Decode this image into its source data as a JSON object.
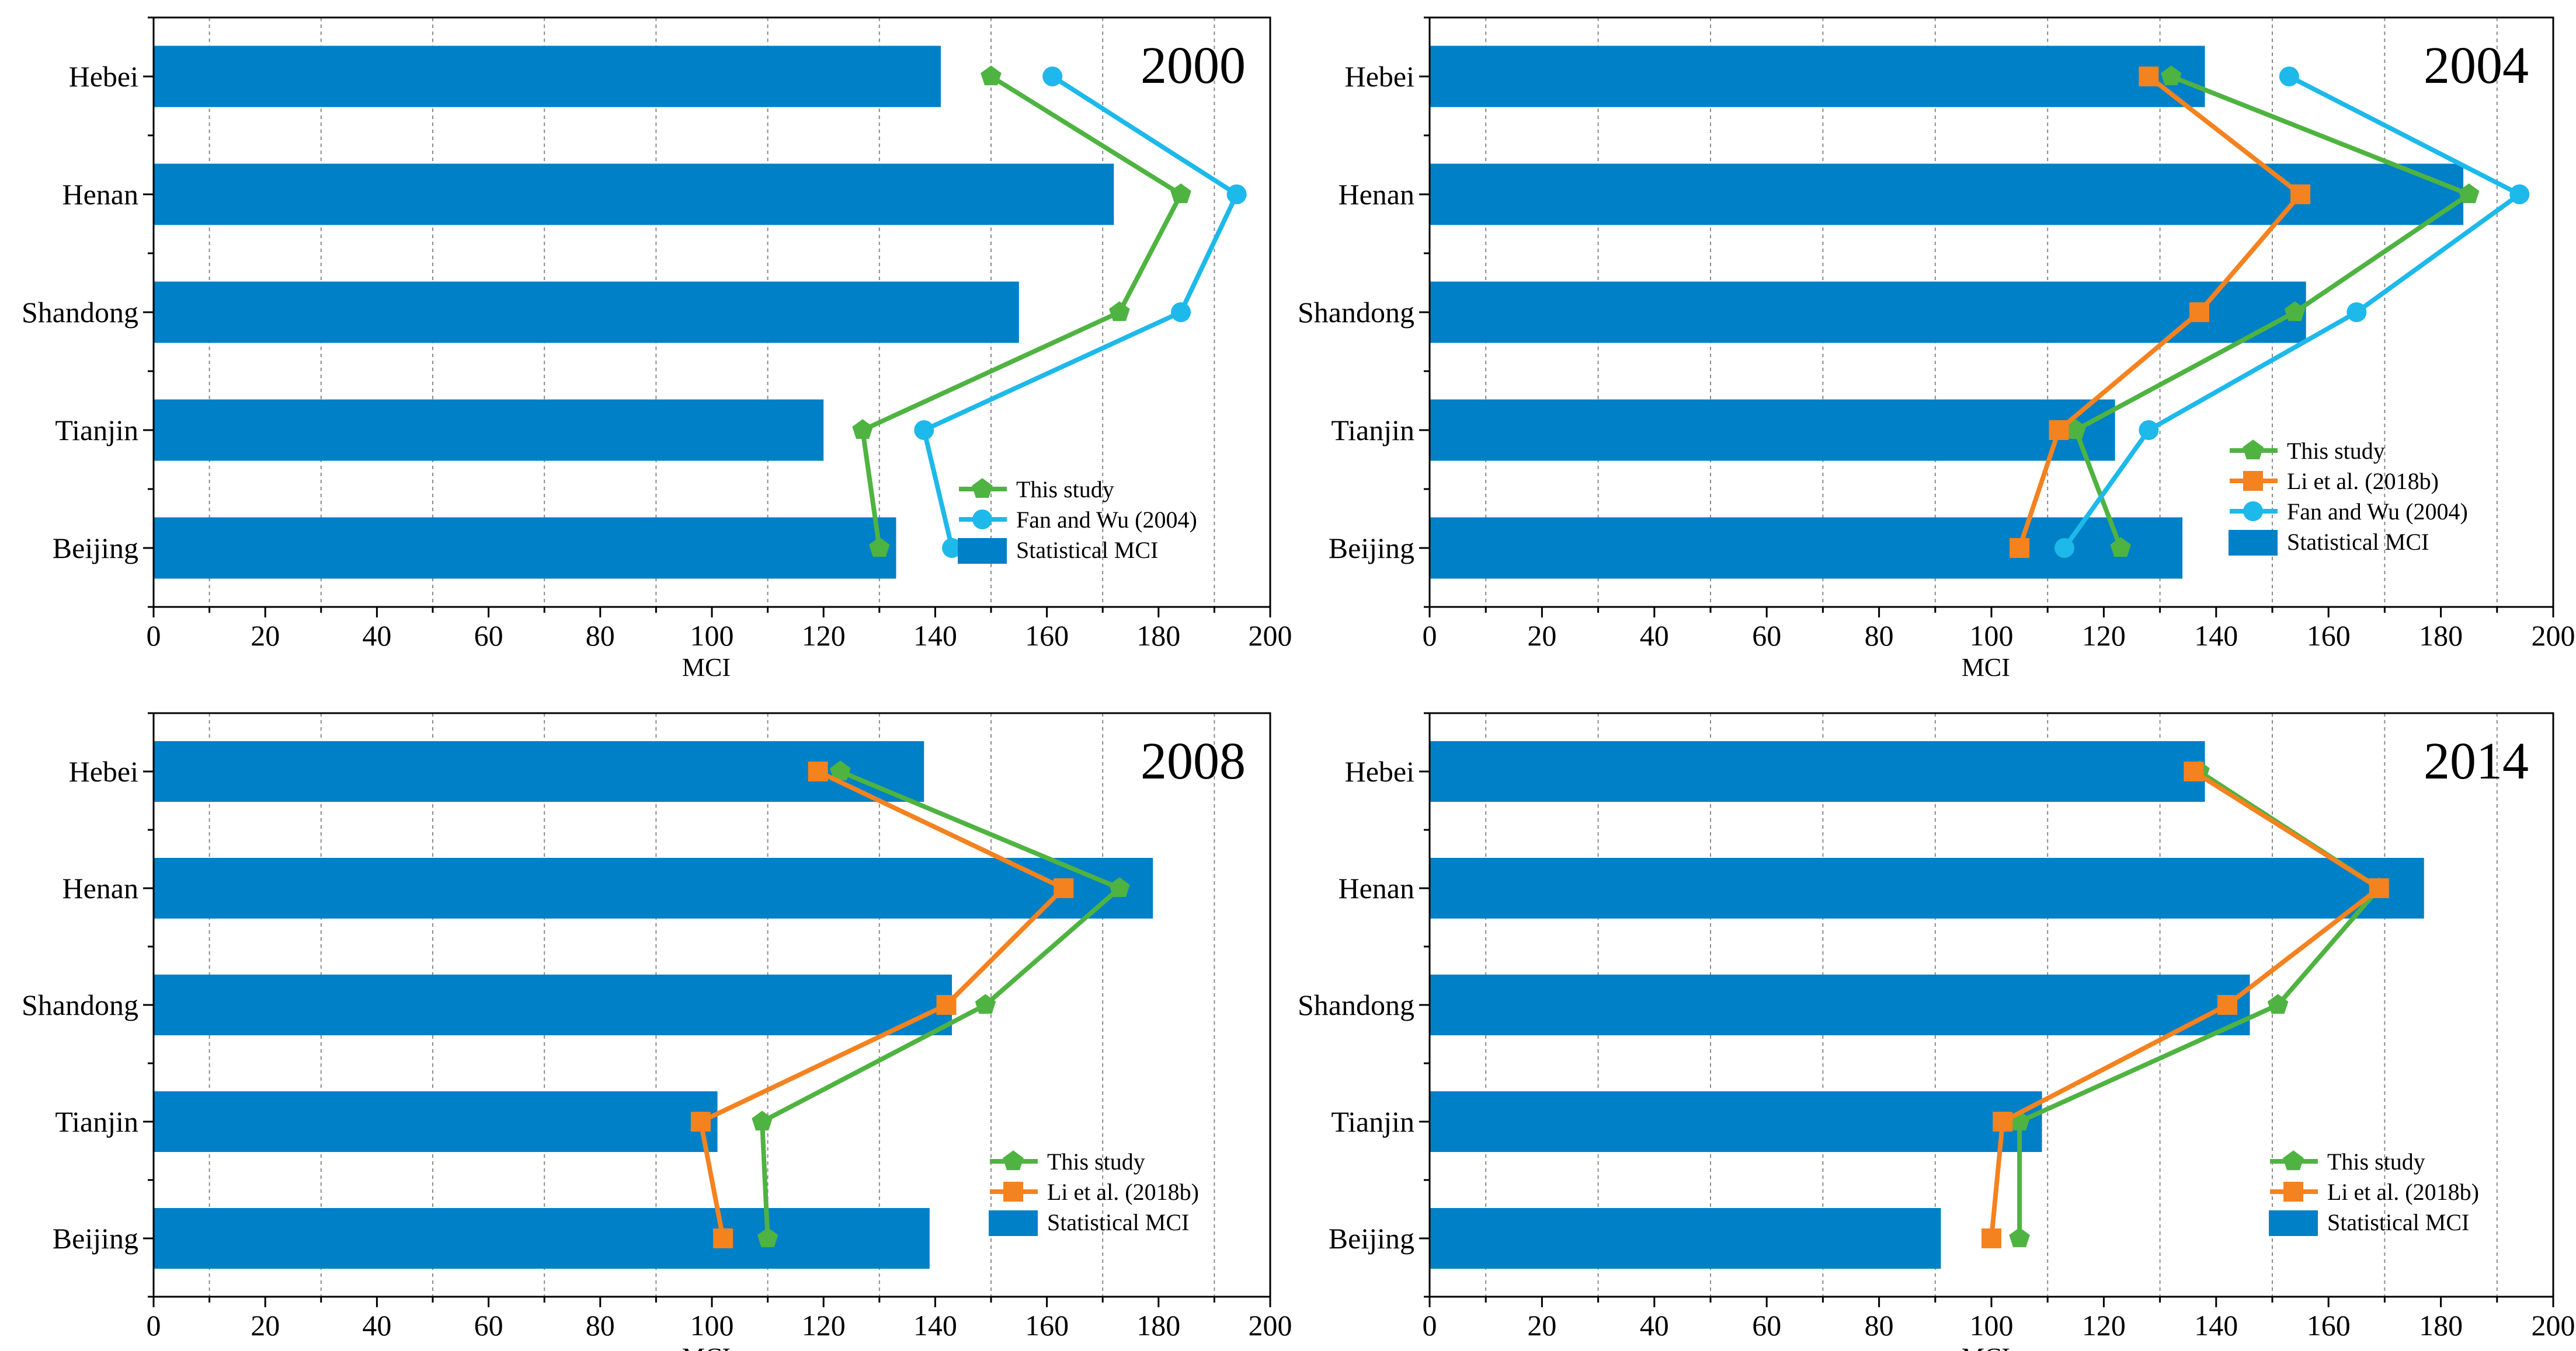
{
  "chart_data": [
    {
      "type": "bar",
      "title": "2000",
      "orientation": "horizontal",
      "categories": [
        "Hebei",
        "Henan",
        "Shandong",
        "Tianjin",
        "Beijing"
      ],
      "xlabel": "MCI",
      "xlim": [
        0,
        200
      ],
      "xticks": [
        "0",
        "20",
        "40",
        "60",
        "80",
        "100",
        "120",
        "140",
        "160",
        "180",
        "200"
      ],
      "gridlines": "dashed vertical",
      "legend_position": "bottom-right",
      "bars": {
        "name": "Statistical MCI",
        "color": "#0080c6",
        "values": [
          141,
          172,
          155,
          120,
          133
        ]
      },
      "series": [
        {
          "name": "This study",
          "color": "#4fb341",
          "marker": "pentagon",
          "values": [
            150,
            184,
            173,
            127,
            130
          ]
        },
        {
          "name": "Fan and Wu (2004)",
          "color": "#1db9ea",
          "marker": "circle",
          "values": [
            161,
            194,
            184,
            138,
            143
          ]
        }
      ]
    },
    {
      "type": "bar",
      "title": "2004",
      "orientation": "horizontal",
      "categories": [
        "Hebei",
        "Henan",
        "Shandong",
        "Tianjin",
        "Beijing"
      ],
      "xlabel": "MCI",
      "xlim": [
        0,
        200
      ],
      "xticks": [
        "0",
        "20",
        "40",
        "60",
        "80",
        "100",
        "120",
        "140",
        "160",
        "180",
        "200"
      ],
      "gridlines": "dashed vertical",
      "legend_position": "bottom-right",
      "bars": {
        "name": "Statistical MCI",
        "color": "#0080c6",
        "values": [
          138,
          184,
          156,
          122,
          134
        ]
      },
      "series": [
        {
          "name": "This study",
          "color": "#4fb341",
          "marker": "pentagon",
          "values": [
            132,
            185,
            154,
            115,
            123
          ]
        },
        {
          "name": "Li et al. (2018b)",
          "color": "#f4821f",
          "marker": "square",
          "values": [
            128,
            155,
            137,
            112,
            105
          ]
        },
        {
          "name": "Fan and Wu (2004)",
          "color": "#1db9ea",
          "marker": "circle",
          "values": [
            153,
            194,
            165,
            128,
            113
          ]
        }
      ]
    },
    {
      "type": "bar",
      "title": "2008",
      "orientation": "horizontal",
      "categories": [
        "Hebei",
        "Henan",
        "Shandong",
        "Tianjin",
        "Beijing"
      ],
      "xlabel": "MCI",
      "xlim": [
        0,
        200
      ],
      "xticks": [
        "0",
        "20",
        "40",
        "60",
        "80",
        "100",
        "120",
        "140",
        "160",
        "180",
        "200"
      ],
      "gridlines": "dashed vertical",
      "legend_position": "bottom-right",
      "bars": {
        "name": "Statistical MCI",
        "color": "#0080c6",
        "values": [
          138,
          179,
          143,
          101,
          139
        ]
      },
      "series": [
        {
          "name": "This study",
          "color": "#4fb341",
          "marker": "pentagon",
          "values": [
            123,
            173,
            149,
            109,
            110
          ]
        },
        {
          "name": "Li et al. (2018b)",
          "color": "#f4821f",
          "marker": "square",
          "values": [
            119,
            163,
            142,
            98,
            102
          ]
        }
      ]
    },
    {
      "type": "bar",
      "title": "2014",
      "orientation": "horizontal",
      "categories": [
        "Hebei",
        "Henan",
        "Shandong",
        "Tianjin",
        "Beijing"
      ],
      "xlabel": "MCI",
      "xlim": [
        0,
        200
      ],
      "xticks": [
        "0",
        "20",
        "40",
        "60",
        "80",
        "100",
        "120",
        "140",
        "160",
        "180",
        "200"
      ],
      "gridlines": "dashed vertical",
      "legend_position": "bottom-right",
      "bars": {
        "name": "Statistical MCI",
        "color": "#0080c6",
        "values": [
          138,
          177,
          146,
          109,
          91
        ]
      },
      "series": [
        {
          "name": "This study",
          "color": "#4fb341",
          "marker": "pentagon",
          "values": [
            137,
            169,
            151,
            105,
            105
          ]
        },
        {
          "name": "Li et al. (2018b)",
          "color": "#f4821f",
          "marker": "square",
          "values": [
            136,
            169,
            142,
            102,
            100
          ]
        }
      ]
    }
  ]
}
